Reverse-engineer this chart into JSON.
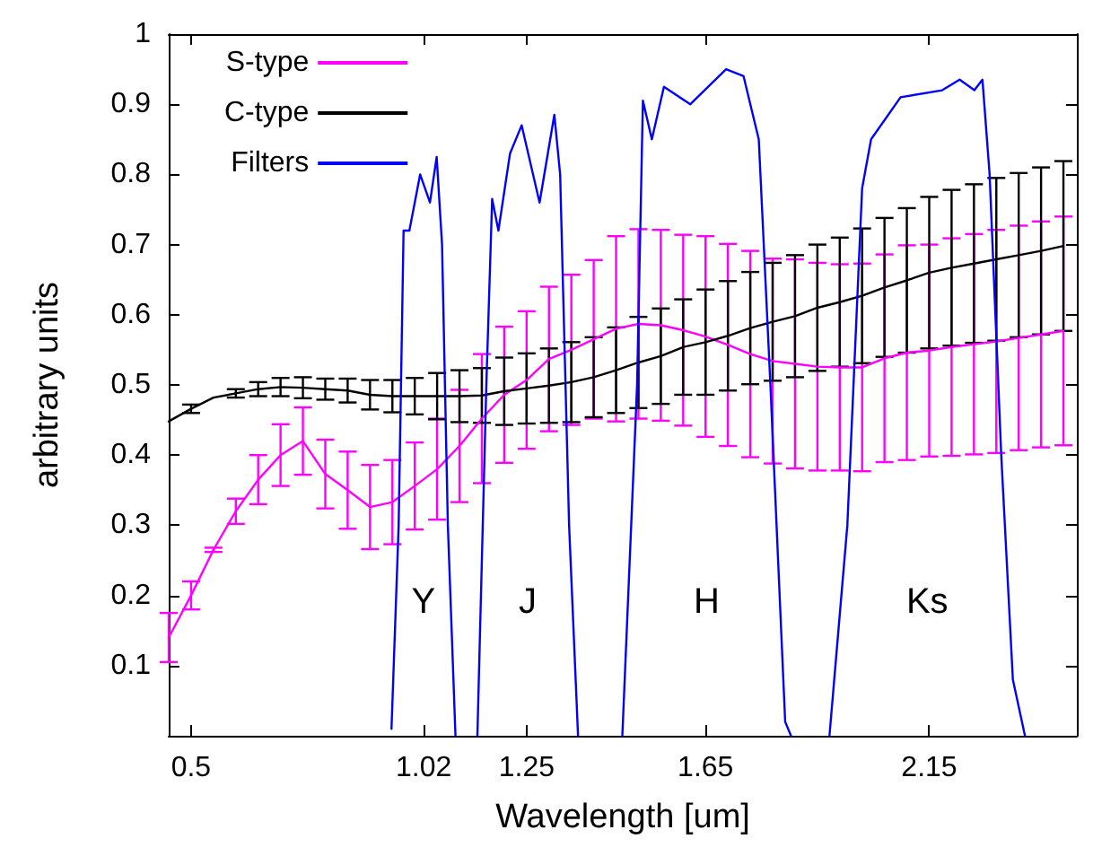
{
  "chart_data": {
    "type": "line",
    "xlabel": "Wavelength [um]",
    "ylabel": "arbitrary units",
    "xlim": [
      0.45,
      2.48
    ],
    "ylim": [
      0,
      1
    ],
    "xticks": [
      0.5,
      1.02,
      1.25,
      1.65,
      2.15
    ],
    "yticks": [
      0.1,
      0.2,
      0.3,
      0.4,
      0.5,
      0.6,
      0.7,
      0.8,
      0.9,
      1
    ],
    "grid": false,
    "legend": "top left",
    "marker": "none",
    "line_style": "solid",
    "annotations": [
      "Y",
      "J",
      "H",
      "Ks"
    ],
    "x": [
      0.45,
      0.5,
      0.55,
      0.6,
      0.65,
      0.7,
      0.75,
      0.8,
      0.85,
      0.9,
      0.95,
      1.0,
      1.05,
      1.1,
      1.15,
      1.2,
      1.25,
      1.3,
      1.35,
      1.4,
      1.45,
      1.5,
      1.55,
      1.6,
      1.65,
      1.7,
      1.75,
      1.8,
      1.85,
      1.9,
      1.95,
      2.0,
      2.05,
      2.1,
      2.15,
      2.2,
      2.25,
      2.3,
      2.35,
      2.4,
      2.45
    ],
    "series": [
      {
        "name": "S-type",
        "color": "#ff00ff",
        "values": [
          0.14,
          0.2,
          0.265,
          0.32,
          0.365,
          0.4,
          0.42,
          0.373,
          0.35,
          0.326,
          0.333,
          0.356,
          0.38,
          0.413,
          0.452,
          0.486,
          0.507,
          0.537,
          0.55,
          0.565,
          0.58,
          0.587,
          0.585,
          0.578,
          0.569,
          0.557,
          0.544,
          0.534,
          0.53,
          0.526,
          0.525,
          0.525,
          0.538,
          0.546,
          0.549,
          0.554,
          0.558,
          0.562,
          0.567,
          0.572,
          0.577
        ],
        "errors": [
          0.035,
          0.02,
          0.003,
          0.018,
          0.035,
          0.044,
          0.048,
          0.049,
          0.055,
          0.06,
          0.06,
          0.062,
          0.072,
          0.08,
          0.092,
          0.097,
          0.098,
          0.103,
          0.107,
          0.113,
          0.132,
          0.135,
          0.136,
          0.136,
          0.143,
          0.144,
          0.147,
          0.146,
          0.149,
          0.148,
          0.147,
          0.148,
          0.148,
          0.153,
          0.151,
          0.155,
          0.157,
          0.159,
          0.16,
          0.161,
          0.163
        ]
      },
      {
        "name": "C-type",
        "color": "#000000",
        "values": [
          0.448,
          0.466,
          0.482,
          0.488,
          0.494,
          0.497,
          0.496,
          0.494,
          0.492,
          0.486,
          0.484,
          0.484,
          0.484,
          0.484,
          0.485,
          0.491,
          0.495,
          0.499,
          0.504,
          0.511,
          0.521,
          0.532,
          0.541,
          0.554,
          0.561,
          0.57,
          0.581,
          0.59,
          0.598,
          0.61,
          0.618,
          0.627,
          0.639,
          0.649,
          0.66,
          0.667,
          0.673,
          0.679,
          0.685,
          0.691,
          0.698
        ],
        "errors": [
          null,
          0.006,
          null,
          0.006,
          0.01,
          0.013,
          0.015,
          0.015,
          0.017,
          0.021,
          0.023,
          0.026,
          0.033,
          0.037,
          0.039,
          0.048,
          0.05,
          0.053,
          0.057,
          0.057,
          0.061,
          0.065,
          0.068,
          0.068,
          0.075,
          0.078,
          0.08,
          0.084,
          0.087,
          0.09,
          0.092,
          0.096,
          0.099,
          0.103,
          0.108,
          0.111,
          0.113,
          0.116,
          0.117,
          0.119,
          0.121
        ]
      },
      {
        "name": "Filters",
        "color": "#0000ff",
        "x": [
          0.948,
          0.964,
          0.975,
          0.988,
          1.012,
          1.034,
          1.049,
          1.061,
          1.074,
          1.091,
          1.115,
          1.14,
          1.16,
          1.173,
          1.187,
          1.213,
          1.239,
          1.279,
          1.312,
          1.325,
          1.345,
          1.365,
          1.415,
          1.464,
          1.497,
          1.51,
          1.53,
          1.557,
          1.616,
          1.696,
          1.735,
          1.769,
          1.795,
          1.828,
          1.841,
          1.885,
          1.927,
          1.967,
          2.0,
          2.02,
          2.086,
          2.179,
          2.218,
          2.251,
          2.269,
          2.285,
          2.311,
          2.337,
          2.364
        ],
        "values": [
          0.01,
          0.3,
          0.72,
          0.72,
          0.8,
          0.76,
          0.825,
          0.7,
          0.3,
          0.0,
          null,
          0.0,
          0.5,
          0.765,
          0.72,
          0.83,
          0.87,
          0.76,
          0.885,
          0.8,
          0.3,
          0.0,
          null,
          0.0,
          0.5,
          0.905,
          0.85,
          0.925,
          0.9,
          0.95,
          0.94,
          0.85,
          0.5,
          0.02,
          0.0,
          null,
          0.0,
          0.3,
          0.78,
          0.85,
          0.91,
          0.92,
          0.935,
          0.92,
          0.935,
          0.8,
          0.4,
          0.08,
          0.0
        ]
      }
    ]
  }
}
